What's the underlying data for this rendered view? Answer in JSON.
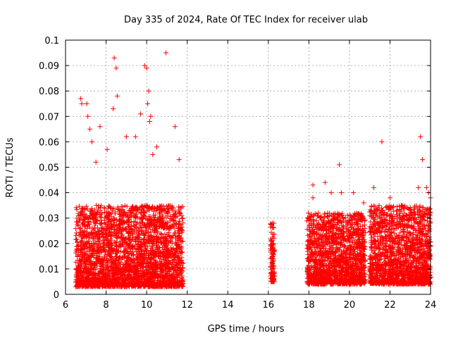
{
  "chart_data": {
    "type": "scatter",
    "title": "Day 335 of 2024, Rate Of TEC Index for receiver ulab",
    "xlabel": "GPS time / hours",
    "ylabel": "ROTI / TECUs",
    "xlim": [
      6,
      24
    ],
    "ylim": [
      0,
      0.1
    ],
    "xticks": [
      "6",
      "8",
      "10",
      "12",
      "14",
      "16",
      "18",
      "20",
      "22",
      "24"
    ],
    "yticks": [
      "0",
      "0.01",
      "0.02",
      "0.03",
      "0.04",
      "0.05",
      "0.06",
      "0.07",
      "0.08",
      "0.09",
      "0.1"
    ],
    "grid": true,
    "legend": "none",
    "marker": "plus",
    "color": "#ff0000",
    "clusters": [
      {
        "x_start": 6.5,
        "x_end": 11.8,
        "y_min": 0.003,
        "y_typical_max": 0.035
      },
      {
        "x_start": 16.1,
        "x_end": 16.3,
        "y_min": 0.005,
        "y_typical_max": 0.028
      },
      {
        "x_start": 17.9,
        "x_end": 20.8,
        "y_min": 0.004,
        "y_typical_max": 0.032
      },
      {
        "x_start": 21.0,
        "x_end": 24.0,
        "y_min": 0.004,
        "y_typical_max": 0.035
      }
    ],
    "x": [
      6.75,
      6.8,
      7.05,
      7.1,
      7.2,
      7.3,
      7.5,
      7.7,
      8.05,
      8.35,
      8.4,
      8.5,
      8.55,
      9.0,
      9.45,
      9.7,
      9.9,
      10.0,
      10.05,
      10.1,
      10.15,
      10.2,
      10.3,
      10.5,
      10.95,
      11.4,
      11.6,
      16.2,
      16.2,
      18.2,
      18.2,
      18.8,
      19.1,
      19.5,
      19.6,
      20.2,
      20.7,
      21.2,
      21.6,
      22.0,
      22.6,
      23.4,
      23.5,
      23.6,
      23.8,
      23.9,
      24.0
    ],
    "y": [
      0.077,
      0.075,
      0.075,
      0.07,
      0.065,
      0.06,
      0.052,
      0.066,
      0.057,
      0.073,
      0.093,
      0.089,
      0.078,
      0.062,
      0.062,
      0.071,
      0.09,
      0.089,
      0.075,
      0.08,
      0.068,
      0.07,
      0.055,
      0.058,
      0.095,
      0.066,
      0.053,
      0.028,
      0.006,
      0.043,
      0.038,
      0.044,
      0.04,
      0.051,
      0.04,
      0.04,
      0.036,
      0.042,
      0.06,
      0.038,
      0.035,
      0.042,
      0.062,
      0.053,
      0.042,
      0.04,
      0.038
    ]
  }
}
